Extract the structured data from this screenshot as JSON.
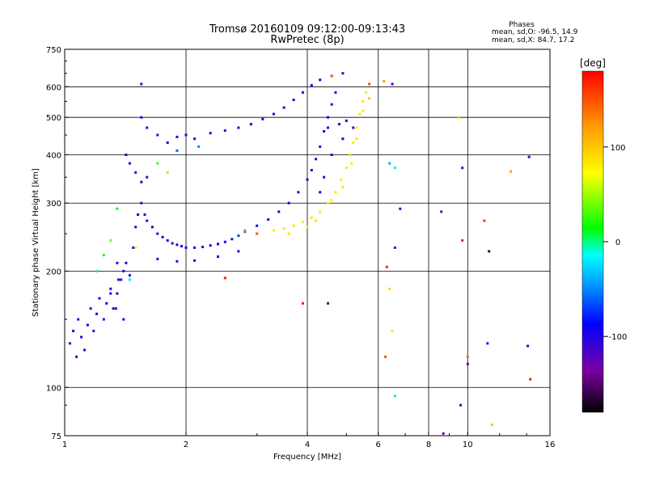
{
  "chart_data": {
    "type": "scatter",
    "title": "Tromsø 20160109 09:12:00-09:13:43",
    "subtitle": "RwPretec (8p)",
    "xlabel": "Frequency [MHz]",
    "ylabel": "Stationary phase Virtual Height [km]",
    "x_scale": "log",
    "y_scale": "log",
    "xlim": [
      1,
      16
    ],
    "ylim": [
      75,
      750
    ],
    "x_ticks": [
      1,
      2,
      4,
      6,
      8,
      10,
      16
    ],
    "x_tick_labels": [
      "1",
      "2",
      "4",
      "6",
      "8",
      "10",
      "16"
    ],
    "y_ticks": [
      75,
      100,
      200,
      300,
      400,
      500,
      600,
      750
    ],
    "y_tick_labels": [
      "75",
      "100",
      "200",
      "300",
      "400",
      "500",
      "600",
      "750"
    ],
    "x_grid": [
      1,
      2,
      4,
      6,
      8,
      10,
      16
    ],
    "y_grid": [
      100,
      200,
      300,
      400,
      500,
      600
    ],
    "grid": true,
    "stats": {
      "heading": "Phases",
      "line1": "mean, sd,O: -96.5, 14.9",
      "line2": "mean, sd,X:  84.7, 17.2"
    },
    "colorbar": {
      "label": "[deg]",
      "range": [
        -180,
        180
      ],
      "ticks": [
        100,
        0,
        -100
      ],
      "tick_labels": [
        "100",
        "0",
        "-100"
      ]
    },
    "series": [
      {
        "points": [
          [
            1.03,
            130,
            -110
          ],
          [
            1.05,
            140,
            -100
          ],
          [
            1.07,
            120,
            -115
          ],
          [
            1.08,
            150,
            -105
          ],
          [
            1.1,
            135,
            -95
          ],
          [
            1.12,
            125,
            -110
          ],
          [
            1.14,
            145,
            -100
          ],
          [
            1.16,
            160,
            -108
          ],
          [
            1.18,
            140,
            -112
          ],
          [
            1.2,
            155,
            -98
          ],
          [
            1.22,
            170,
            -104
          ],
          [
            1.25,
            150,
            -110
          ],
          [
            1.27,
            165,
            -96
          ],
          [
            1.3,
            180,
            -102
          ],
          [
            1.32,
            160,
            -108
          ],
          [
            1.35,
            175,
            -100
          ],
          [
            1.38,
            190,
            -96
          ],
          [
            1.4,
            200,
            -104
          ],
          [
            1.42,
            210,
            -98
          ],
          [
            1.45,
            195,
            -106
          ],
          [
            1.48,
            230,
            -90
          ],
          [
            1.5,
            260,
            -100
          ],
          [
            1.52,
            280,
            -95
          ],
          [
            1.55,
            300,
            -105
          ],
          [
            1.58,
            280,
            -100
          ],
          [
            1.6,
            270,
            -110
          ],
          [
            1.65,
            260,
            -100
          ],
          [
            1.7,
            250,
            -105
          ],
          [
            1.75,
            245,
            -95
          ],
          [
            1.8,
            240,
            -100
          ],
          [
            1.85,
            236,
            -104
          ],
          [
            1.9,
            234,
            -98
          ],
          [
            1.95,
            232,
            -102
          ],
          [
            2.0,
            230,
            -96
          ],
          [
            2.1,
            230,
            -100
          ],
          [
            2.2,
            231,
            -104
          ],
          [
            2.3,
            233,
            -98
          ],
          [
            2.4,
            235,
            -90
          ],
          [
            2.5,
            238,
            -86
          ],
          [
            2.6,
            242,
            -80
          ],
          [
            2.7,
            247,
            -70
          ],
          [
            2.8,
            253,
            -60
          ],
          [
            3.0,
            262,
            -100
          ],
          [
            3.2,
            272,
            -104
          ],
          [
            3.4,
            285,
            -98
          ],
          [
            3.6,
            300,
            -102
          ],
          [
            3.8,
            320,
            -106
          ],
          [
            4.0,
            345,
            -100
          ],
          [
            4.1,
            365,
            -96
          ],
          [
            4.2,
            390,
            -104
          ],
          [
            4.3,
            420,
            -100
          ],
          [
            4.4,
            460,
            -106
          ],
          [
            4.5,
            500,
            -98
          ],
          [
            4.6,
            540,
            -102
          ],
          [
            4.7,
            580,
            -100
          ],
          [
            1.55,
            500,
            -100
          ],
          [
            1.6,
            470,
            -105
          ],
          [
            1.7,
            450,
            -110
          ],
          [
            1.8,
            430,
            -95
          ],
          [
            1.9,
            445,
            -100
          ],
          [
            2.0,
            450,
            -104
          ],
          [
            2.1,
            440,
            -98
          ],
          [
            2.3,
            455,
            -100
          ],
          [
            2.5,
            462,
            -104
          ],
          [
            2.7,
            470,
            -98
          ],
          [
            2.9,
            480,
            -102
          ],
          [
            3.1,
            495,
            -96
          ],
          [
            3.3,
            510,
            -100
          ],
          [
            3.5,
            530,
            -104
          ],
          [
            3.7,
            555,
            -98
          ],
          [
            3.9,
            580,
            -102
          ],
          [
            4.1,
            605,
            -100
          ],
          [
            4.3,
            625,
            -96
          ],
          [
            4.6,
            640,
            -104
          ],
          [
            4.9,
            650,
            -100
          ],
          [
            1.45,
            380,
            -100
          ],
          [
            1.5,
            360,
            -104
          ],
          [
            1.55,
            340,
            -98
          ],
          [
            1.42,
            400,
            -102
          ],
          [
            1.6,
            350,
            -106
          ],
          [
            1.35,
            210,
            -100
          ],
          [
            1.36,
            190,
            -104
          ],
          [
            1.3,
            175,
            -98
          ],
          [
            1.34,
            160,
            -102
          ],
          [
            1.4,
            150,
            -96
          ],
          [
            1.7,
            215,
            -100
          ],
          [
            1.9,
            212,
            -104
          ],
          [
            2.1,
            213,
            -98
          ],
          [
            2.4,
            218,
            -102
          ],
          [
            2.7,
            225,
            -100
          ],
          [
            4.5,
            470,
            -100
          ],
          [
            4.8,
            480,
            -104
          ],
          [
            5.0,
            490,
            -98
          ],
          [
            5.2,
            470,
            -102
          ],
          [
            4.9,
            440,
            -96
          ],
          [
            4.6,
            400,
            -100
          ],
          [
            4.4,
            350,
            -104
          ],
          [
            4.3,
            320,
            -98
          ]
        ]
      },
      {
        "points": [
          [
            3.3,
            255,
            80
          ],
          [
            3.5,
            258,
            84
          ],
          [
            3.7,
            262,
            88
          ],
          [
            3.9,
            268,
            82
          ],
          [
            4.1,
            275,
            86
          ],
          [
            4.3,
            285,
            84
          ],
          [
            4.5,
            300,
            80
          ],
          [
            4.7,
            320,
            88
          ],
          [
            4.85,
            345,
            84
          ],
          [
            5.0,
            370,
            82
          ],
          [
            5.1,
            400,
            86
          ],
          [
            5.2,
            430,
            84
          ],
          [
            5.3,
            470,
            80
          ],
          [
            5.4,
            510,
            88
          ],
          [
            5.5,
            550,
            84
          ],
          [
            5.6,
            580,
            82
          ],
          [
            4.2,
            270,
            90
          ],
          [
            4.6,
            305,
            80
          ],
          [
            4.9,
            330,
            86
          ],
          [
            5.15,
            380,
            84
          ],
          [
            4.0,
            260,
            82
          ],
          [
            3.6,
            250,
            88
          ],
          [
            5.3,
            440,
            86
          ],
          [
            5.5,
            520,
            84
          ],
          [
            5.7,
            560,
            100
          ]
        ]
      },
      {
        "points": [
          [
            1.2,
            200,
            0
          ],
          [
            1.25,
            220,
            20
          ],
          [
            1.3,
            240,
            40
          ],
          [
            1.45,
            190,
            -20
          ],
          [
            1.5,
            230,
            60
          ],
          [
            1.7,
            380,
            30
          ],
          [
            1.8,
            360,
            50
          ],
          [
            2.8,
            255,
            130
          ],
          [
            3.0,
            250,
            150
          ],
          [
            1.35,
            290,
            10
          ],
          [
            1.9,
            410,
            -60
          ],
          [
            2.15,
            420,
            -50
          ],
          [
            6.4,
            380,
            -40
          ],
          [
            6.5,
            140,
            60
          ],
          [
            6.6,
            95,
            0
          ],
          [
            9.5,
            500,
            100
          ],
          [
            11.5,
            80,
            100
          ],
          [
            6.2,
            620,
            120
          ],
          [
            4.6,
            640,
            140
          ],
          [
            5.7,
            610,
            150
          ]
        ]
      },
      {
        "points": [
          [
            1.55,
            610,
            -110
          ],
          [
            6.5,
            610,
            -120
          ],
          [
            9.7,
            370,
            -120
          ],
          [
            8.6,
            285,
            -130
          ],
          [
            6.3,
            205,
            170
          ],
          [
            3.9,
            165,
            170
          ],
          [
            4.5,
            165,
            -150
          ],
          [
            2.5,
            192,
            175
          ],
          [
            11.3,
            225,
            -160
          ],
          [
            9.6,
            90,
            -120
          ],
          [
            10.0,
            115,
            -140
          ],
          [
            11.2,
            130,
            -110
          ],
          [
            14.1,
            128,
            -100
          ],
          [
            14.2,
            395,
            -110
          ],
          [
            14.3,
            105,
            170
          ],
          [
            12.8,
            362,
            120
          ],
          [
            9.7,
            240,
            170
          ],
          [
            6.4,
            180,
            90
          ],
          [
            6.25,
            120,
            150
          ],
          [
            8.7,
            76,
            -130
          ],
          [
            6.6,
            370,
            -20
          ],
          [
            6.8,
            290,
            -110
          ],
          [
            10.0,
            120,
            140
          ],
          [
            11.0,
            270,
            160
          ],
          [
            6.6,
            230,
            -120
          ]
        ]
      }
    ]
  }
}
